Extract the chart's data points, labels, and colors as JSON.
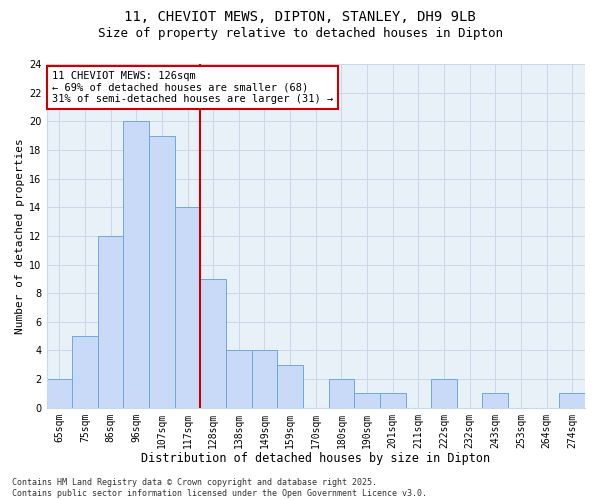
{
  "title1": "11, CHEVIOT MEWS, DIPTON, STANLEY, DH9 9LB",
  "title2": "Size of property relative to detached houses in Dipton",
  "xlabel": "Distribution of detached houses by size in Dipton",
  "ylabel": "Number of detached properties",
  "categories": [
    "65sqm",
    "75sqm",
    "86sqm",
    "96sqm",
    "107sqm",
    "117sqm",
    "128sqm",
    "138sqm",
    "149sqm",
    "159sqm",
    "170sqm",
    "180sqm",
    "190sqm",
    "201sqm",
    "211sqm",
    "222sqm",
    "232sqm",
    "243sqm",
    "253sqm",
    "264sqm",
    "274sqm"
  ],
  "values": [
    2,
    5,
    12,
    20,
    19,
    14,
    9,
    4,
    4,
    3,
    0,
    2,
    1,
    1,
    0,
    2,
    0,
    1,
    0,
    0,
    1
  ],
  "bar_color": "#c9daf8",
  "bar_edge_color": "#6fa8dc",
  "vline_color": "#cc0000",
  "vline_index": 6,
  "annotation_text": "11 CHEVIOT MEWS: 126sqm\n← 69% of detached houses are smaller (68)\n31% of semi-detached houses are larger (31) →",
  "annotation_box_color": "#ffffff",
  "annotation_box_edge": "#cc0000",
  "ylim": [
    0,
    24
  ],
  "yticks": [
    0,
    2,
    4,
    6,
    8,
    10,
    12,
    14,
    16,
    18,
    20,
    22,
    24
  ],
  "grid_color": "#c8d8ea",
  "plot_bg_color": "#e8f0f8",
  "fig_bg_color": "#ffffff",
  "footer": "Contains HM Land Registry data © Crown copyright and database right 2025.\nContains public sector information licensed under the Open Government Licence v3.0.",
  "title1_fontsize": 10,
  "title2_fontsize": 9,
  "xlabel_fontsize": 8.5,
  "ylabel_fontsize": 8,
  "tick_fontsize": 7,
  "annotation_fontsize": 7.5,
  "footer_fontsize": 6
}
